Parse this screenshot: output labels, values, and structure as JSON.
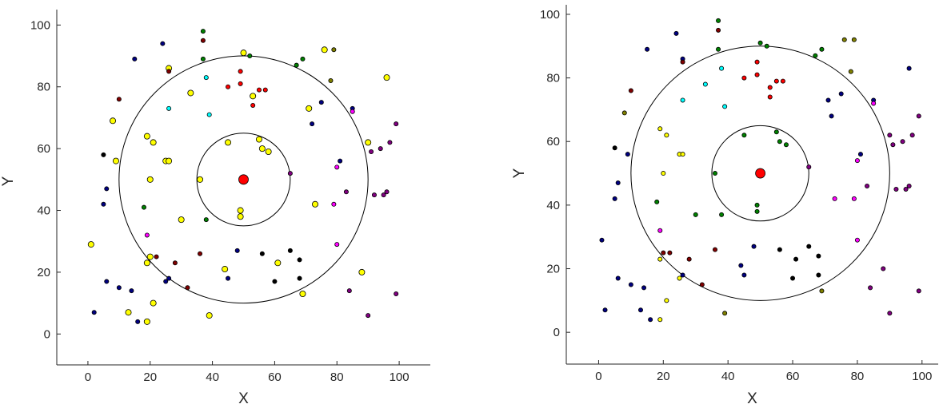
{
  "chart_data": [
    {
      "type": "scatter",
      "title": "",
      "xlabel": "X",
      "ylabel": "Y",
      "xlim": [
        -10,
        110
      ],
      "ylim": [
        -10,
        105
      ],
      "xticks": [
        "0",
        "20",
        "40",
        "60",
        "80",
        "100"
      ],
      "yticks": [
        "0",
        "20",
        "40",
        "60",
        "80",
        "100"
      ],
      "grid": false,
      "center": {
        "x": 50,
        "y": 50,
        "color": "#ff0000"
      },
      "circles": [
        {
          "cx": 50,
          "cy": 50,
          "r": 15
        },
        {
          "cx": 50,
          "cy": 50,
          "r": 40
        }
      ],
      "points": [
        {
          "x": 1,
          "y": 29,
          "c": "#ffff00"
        },
        {
          "x": 2,
          "y": 7,
          "c": "#000080"
        },
        {
          "x": 5,
          "y": 42,
          "c": "#000080"
        },
        {
          "x": 5,
          "y": 58,
          "c": "#000000"
        },
        {
          "x": 6,
          "y": 47,
          "c": "#000080"
        },
        {
          "x": 6,
          "y": 17,
          "c": "#000080"
        },
        {
          "x": 8,
          "y": 69,
          "c": "#ffff00"
        },
        {
          "x": 9,
          "y": 56,
          "c": "#ffff00"
        },
        {
          "x": 10,
          "y": 76,
          "c": "#800000"
        },
        {
          "x": 10,
          "y": 15,
          "c": "#000080"
        },
        {
          "x": 13,
          "y": 7,
          "c": "#ffff00"
        },
        {
          "x": 14,
          "y": 14,
          "c": "#000080"
        },
        {
          "x": 15,
          "y": 89,
          "c": "#000080"
        },
        {
          "x": 16,
          "y": 4,
          "c": "#000080"
        },
        {
          "x": 18,
          "y": 41,
          "c": "#008000"
        },
        {
          "x": 19,
          "y": 4,
          "c": "#ffff00"
        },
        {
          "x": 19,
          "y": 64,
          "c": "#ffff00"
        },
        {
          "x": 19,
          "y": 32,
          "c": "#ff00ff"
        },
        {
          "x": 19,
          "y": 23,
          "c": "#ffff00"
        },
        {
          "x": 20,
          "y": 50,
          "c": "#ffff00"
        },
        {
          "x": 20,
          "y": 25,
          "c": "#ffff00"
        },
        {
          "x": 21,
          "y": 62,
          "c": "#ffff00"
        },
        {
          "x": 21,
          "y": 10,
          "c": "#ffff00"
        },
        {
          "x": 22,
          "y": 25,
          "c": "#800000"
        },
        {
          "x": 24,
          "y": 94,
          "c": "#000080"
        },
        {
          "x": 25,
          "y": 56,
          "c": "#ffff00"
        },
        {
          "x": 25,
          "y": 17,
          "c": "#000080"
        },
        {
          "x": 26,
          "y": 86,
          "c": "#ffff00"
        },
        {
          "x": 26,
          "y": 85,
          "c": "#800000"
        },
        {
          "x": 26,
          "y": 73,
          "c": "#00ffff"
        },
        {
          "x": 26,
          "y": 56,
          "c": "#ffff00"
        },
        {
          "x": 26,
          "y": 18,
          "c": "#000080"
        },
        {
          "x": 28,
          "y": 23,
          "c": "#800000"
        },
        {
          "x": 30,
          "y": 37,
          "c": "#ffff00"
        },
        {
          "x": 32,
          "y": 15,
          "c": "#800000"
        },
        {
          "x": 33,
          "y": 78,
          "c": "#ffff00"
        },
        {
          "x": 36,
          "y": 26,
          "c": "#800000"
        },
        {
          "x": 36,
          "y": 50,
          "c": "#ffff00"
        },
        {
          "x": 37,
          "y": 95,
          "c": "#800000"
        },
        {
          "x": 37,
          "y": 98,
          "c": "#008000"
        },
        {
          "x": 37,
          "y": 89,
          "c": "#008000"
        },
        {
          "x": 38,
          "y": 83,
          "c": "#00ffff"
        },
        {
          "x": 38,
          "y": 37,
          "c": "#008000"
        },
        {
          "x": 39,
          "y": 71,
          "c": "#00ffff"
        },
        {
          "x": 39,
          "y": 6,
          "c": "#ffff00"
        },
        {
          "x": 44,
          "y": 21,
          "c": "#ffff00"
        },
        {
          "x": 45,
          "y": 18,
          "c": "#000080"
        },
        {
          "x": 45,
          "y": 80,
          "c": "#ff0000"
        },
        {
          "x": 45,
          "y": 62,
          "c": "#ffff00"
        },
        {
          "x": 48,
          "y": 27,
          "c": "#000080"
        },
        {
          "x": 49,
          "y": 85,
          "c": "#ff0000"
        },
        {
          "x": 49,
          "y": 81,
          "c": "#ff0000"
        },
        {
          "x": 49,
          "y": 40,
          "c": "#ffff00"
        },
        {
          "x": 49,
          "y": 38,
          "c": "#ffff00"
        },
        {
          "x": 50,
          "y": 91,
          "c": "#ffff00"
        },
        {
          "x": 52,
          "y": 90,
          "c": "#008000"
        },
        {
          "x": 53,
          "y": 77,
          "c": "#ffff00"
        },
        {
          "x": 53,
          "y": 74,
          "c": "#ff0000"
        },
        {
          "x": 55,
          "y": 79,
          "c": "#ff0000"
        },
        {
          "x": 55,
          "y": 63,
          "c": "#ffff00"
        },
        {
          "x": 56,
          "y": 60,
          "c": "#ffff00"
        },
        {
          "x": 56,
          "y": 26,
          "c": "#000000"
        },
        {
          "x": 57,
          "y": 79,
          "c": "#ff0000"
        },
        {
          "x": 58,
          "y": 59,
          "c": "#ffff00"
        },
        {
          "x": 60,
          "y": 17,
          "c": "#000000"
        },
        {
          "x": 61,
          "y": 23,
          "c": "#ffff00"
        },
        {
          "x": 65,
          "y": 27,
          "c": "#000000"
        },
        {
          "x": 65,
          "y": 52,
          "c": "#800080"
        },
        {
          "x": 67,
          "y": 87,
          "c": "#008000"
        },
        {
          "x": 68,
          "y": 24,
          "c": "#000000"
        },
        {
          "x": 68,
          "y": 18,
          "c": "#000000"
        },
        {
          "x": 69,
          "y": 89,
          "c": "#008000"
        },
        {
          "x": 69,
          "y": 13,
          "c": "#ffff00"
        },
        {
          "x": 71,
          "y": 73,
          "c": "#ffff00"
        },
        {
          "x": 72,
          "y": 68,
          "c": "#000080"
        },
        {
          "x": 73,
          "y": 42,
          "c": "#ffff00"
        },
        {
          "x": 75,
          "y": 75,
          "c": "#000080"
        },
        {
          "x": 76,
          "y": 92,
          "c": "#ffff00"
        },
        {
          "x": 78,
          "y": 82,
          "c": "#808000"
        },
        {
          "x": 79,
          "y": 92,
          "c": "#808000"
        },
        {
          "x": 79,
          "y": 42,
          "c": "#ff00ff"
        },
        {
          "x": 80,
          "y": 54,
          "c": "#ff00ff"
        },
        {
          "x": 80,
          "y": 29,
          "c": "#ff00ff"
        },
        {
          "x": 81,
          "y": 56,
          "c": "#000080"
        },
        {
          "x": 83,
          "y": 46,
          "c": "#800080"
        },
        {
          "x": 84,
          "y": 14,
          "c": "#800080"
        },
        {
          "x": 85,
          "y": 73,
          "c": "#000080"
        },
        {
          "x": 85,
          "y": 72,
          "c": "#ff00ff"
        },
        {
          "x": 88,
          "y": 20,
          "c": "#ffff00"
        },
        {
          "x": 90,
          "y": 62,
          "c": "#ffff00"
        },
        {
          "x": 90,
          "y": 6,
          "c": "#800080"
        },
        {
          "x": 91,
          "y": 59,
          "c": "#800080"
        },
        {
          "x": 92,
          "y": 45,
          "c": "#800080"
        },
        {
          "x": 94,
          "y": 60,
          "c": "#800080"
        },
        {
          "x": 95,
          "y": 45,
          "c": "#800080"
        },
        {
          "x": 96,
          "y": 83,
          "c": "#ffff00"
        },
        {
          "x": 96,
          "y": 46,
          "c": "#800080"
        },
        {
          "x": 97,
          "y": 62,
          "c": "#800080"
        },
        {
          "x": 99,
          "y": 68,
          "c": "#800080"
        },
        {
          "x": 99,
          "y": 13,
          "c": "#800080"
        }
      ]
    },
    {
      "type": "scatter",
      "title": "",
      "xlabel": "X",
      "ylabel": "Y",
      "xlim": [
        -10,
        105
      ],
      "ylim": [
        -10,
        103
      ],
      "xticks": [
        "0",
        "20",
        "40",
        "60",
        "80",
        "100"
      ],
      "yticks": [
        "0",
        "20",
        "40",
        "60",
        "80",
        "100"
      ],
      "grid": false,
      "center": {
        "x": 50,
        "y": 50,
        "color": "#ff0000"
      },
      "circles": [
        {
          "cx": 50,
          "cy": 50,
          "r": 15
        },
        {
          "cx": 50,
          "cy": 50,
          "r": 40
        }
      ],
      "points": [
        {
          "x": 1,
          "y": 29,
          "c": "#000080"
        },
        {
          "x": 2,
          "y": 7,
          "c": "#000080"
        },
        {
          "x": 5,
          "y": 42,
          "c": "#000080"
        },
        {
          "x": 5,
          "y": 58,
          "c": "#000000"
        },
        {
          "x": 6,
          "y": 47,
          "c": "#000080"
        },
        {
          "x": 6,
          "y": 17,
          "c": "#000080"
        },
        {
          "x": 8,
          "y": 69,
          "c": "#808000"
        },
        {
          "x": 9,
          "y": 56,
          "c": "#000080"
        },
        {
          "x": 10,
          "y": 76,
          "c": "#800000"
        },
        {
          "x": 10,
          "y": 15,
          "c": "#000080"
        },
        {
          "x": 13,
          "y": 7,
          "c": "#000080"
        },
        {
          "x": 14,
          "y": 14,
          "c": "#000080"
        },
        {
          "x": 15,
          "y": 89,
          "c": "#000080"
        },
        {
          "x": 16,
          "y": 4,
          "c": "#000080"
        },
        {
          "x": 18,
          "y": 41,
          "c": "#008000"
        },
        {
          "x": 19,
          "y": 4,
          "c": "#ffff00"
        },
        {
          "x": 19,
          "y": 64,
          "c": "#ffff00"
        },
        {
          "x": 19,
          "y": 32,
          "c": "#ff00ff"
        },
        {
          "x": 19,
          "y": 23,
          "c": "#ffff00"
        },
        {
          "x": 20,
          "y": 50,
          "c": "#ffff00"
        },
        {
          "x": 20,
          "y": 25,
          "c": "#800000"
        },
        {
          "x": 21,
          "y": 62,
          "c": "#ffff00"
        },
        {
          "x": 21,
          "y": 10,
          "c": "#ffff00"
        },
        {
          "x": 22,
          "y": 25,
          "c": "#800000"
        },
        {
          "x": 24,
          "y": 94,
          "c": "#000080"
        },
        {
          "x": 25,
          "y": 56,
          "c": "#ffff00"
        },
        {
          "x": 25,
          "y": 17,
          "c": "#ffff00"
        },
        {
          "x": 26,
          "y": 86,
          "c": "#000080"
        },
        {
          "x": 26,
          "y": 85,
          "c": "#800000"
        },
        {
          "x": 26,
          "y": 73,
          "c": "#00ffff"
        },
        {
          "x": 26,
          "y": 56,
          "c": "#ffff00"
        },
        {
          "x": 26,
          "y": 18,
          "c": "#000080"
        },
        {
          "x": 28,
          "y": 23,
          "c": "#800000"
        },
        {
          "x": 30,
          "y": 37,
          "c": "#008000"
        },
        {
          "x": 32,
          "y": 15,
          "c": "#800000"
        },
        {
          "x": 33,
          "y": 78,
          "c": "#00ffff"
        },
        {
          "x": 36,
          "y": 26,
          "c": "#800000"
        },
        {
          "x": 36,
          "y": 50,
          "c": "#008000"
        },
        {
          "x": 37,
          "y": 95,
          "c": "#800000"
        },
        {
          "x": 37,
          "y": 98,
          "c": "#008000"
        },
        {
          "x": 37,
          "y": 89,
          "c": "#008000"
        },
        {
          "x": 38,
          "y": 83,
          "c": "#00ffff"
        },
        {
          "x": 38,
          "y": 37,
          "c": "#008000"
        },
        {
          "x": 39,
          "y": 71,
          "c": "#00ffff"
        },
        {
          "x": 39,
          "y": 6,
          "c": "#808000"
        },
        {
          "x": 44,
          "y": 21,
          "c": "#000080"
        },
        {
          "x": 45,
          "y": 18,
          "c": "#000080"
        },
        {
          "x": 45,
          "y": 80,
          "c": "#ff0000"
        },
        {
          "x": 45,
          "y": 62,
          "c": "#008000"
        },
        {
          "x": 48,
          "y": 27,
          "c": "#000080"
        },
        {
          "x": 49,
          "y": 85,
          "c": "#ff0000"
        },
        {
          "x": 49,
          "y": 81,
          "c": "#ff0000"
        },
        {
          "x": 49,
          "y": 40,
          "c": "#008000"
        },
        {
          "x": 49,
          "y": 38,
          "c": "#008000"
        },
        {
          "x": 50,
          "y": 91,
          "c": "#008000"
        },
        {
          "x": 52,
          "y": 90,
          "c": "#008000"
        },
        {
          "x": 53,
          "y": 77,
          "c": "#ff0000"
        },
        {
          "x": 53,
          "y": 74,
          "c": "#ff0000"
        },
        {
          "x": 55,
          "y": 79,
          "c": "#ff0000"
        },
        {
          "x": 55,
          "y": 63,
          "c": "#008000"
        },
        {
          "x": 56,
          "y": 60,
          "c": "#008000"
        },
        {
          "x": 56,
          "y": 26,
          "c": "#000000"
        },
        {
          "x": 57,
          "y": 79,
          "c": "#ff0000"
        },
        {
          "x": 58,
          "y": 59,
          "c": "#008000"
        },
        {
          "x": 60,
          "y": 17,
          "c": "#000000"
        },
        {
          "x": 61,
          "y": 23,
          "c": "#000000"
        },
        {
          "x": 65,
          "y": 27,
          "c": "#000000"
        },
        {
          "x": 65,
          "y": 52,
          "c": "#800080"
        },
        {
          "x": 67,
          "y": 87,
          "c": "#008000"
        },
        {
          "x": 68,
          "y": 24,
          "c": "#000000"
        },
        {
          "x": 68,
          "y": 18,
          "c": "#000000"
        },
        {
          "x": 69,
          "y": 89,
          "c": "#008000"
        },
        {
          "x": 69,
          "y": 13,
          "c": "#808000"
        },
        {
          "x": 71,
          "y": 73,
          "c": "#000080"
        },
        {
          "x": 72,
          "y": 68,
          "c": "#000080"
        },
        {
          "x": 73,
          "y": 42,
          "c": "#ff00ff"
        },
        {
          "x": 75,
          "y": 75,
          "c": "#000080"
        },
        {
          "x": 76,
          "y": 92,
          "c": "#808000"
        },
        {
          "x": 78,
          "y": 82,
          "c": "#808000"
        },
        {
          "x": 79,
          "y": 92,
          "c": "#808000"
        },
        {
          "x": 79,
          "y": 42,
          "c": "#ff00ff"
        },
        {
          "x": 80,
          "y": 54,
          "c": "#ff00ff"
        },
        {
          "x": 80,
          "y": 29,
          "c": "#ff00ff"
        },
        {
          "x": 81,
          "y": 56,
          "c": "#000080"
        },
        {
          "x": 83,
          "y": 46,
          "c": "#800080"
        },
        {
          "x": 84,
          "y": 14,
          "c": "#800080"
        },
        {
          "x": 85,
          "y": 73,
          "c": "#000080"
        },
        {
          "x": 85,
          "y": 72,
          "c": "#ff00ff"
        },
        {
          "x": 88,
          "y": 20,
          "c": "#800080"
        },
        {
          "x": 90,
          "y": 62,
          "c": "#800080"
        },
        {
          "x": 90,
          "y": 6,
          "c": "#800080"
        },
        {
          "x": 91,
          "y": 59,
          "c": "#800080"
        },
        {
          "x": 92,
          "y": 45,
          "c": "#800080"
        },
        {
          "x": 94,
          "y": 60,
          "c": "#800080"
        },
        {
          "x": 95,
          "y": 45,
          "c": "#800080"
        },
        {
          "x": 96,
          "y": 83,
          "c": "#000080"
        },
        {
          "x": 96,
          "y": 46,
          "c": "#800080"
        },
        {
          "x": 97,
          "y": 62,
          "c": "#800080"
        },
        {
          "x": 99,
          "y": 68,
          "c": "#800080"
        },
        {
          "x": 99,
          "y": 13,
          "c": "#800080"
        }
      ]
    }
  ]
}
